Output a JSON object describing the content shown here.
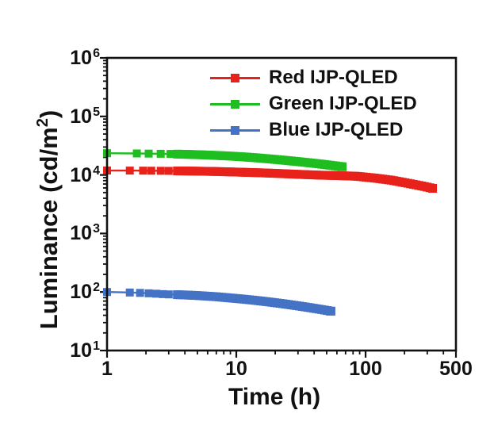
{
  "chart_data": {
    "type": "line",
    "title": "",
    "x_title": "Time (h)",
    "y_title": {
      "pre": "Luminance (cd/m",
      "sup": "2",
      "post": ")"
    },
    "x_scale": "log",
    "y_scale": "log",
    "xlim": [
      1,
      500
    ],
    "ylim": [
      10,
      1000000
    ],
    "x_ticks": {
      "values": [
        1,
        10,
        100,
        500
      ],
      "labels": [
        "1",
        "10",
        "100",
        "500"
      ]
    },
    "y_ticks": {
      "base": "10",
      "exponents": [
        1,
        2,
        3,
        4,
        5,
        6
      ]
    },
    "grid": false,
    "legend_position": "top-right",
    "axis_color": "#111111",
    "series": [
      {
        "name": "Red IJP-QLED",
        "color": "#e8221a",
        "points": [
          [
            1,
            11900
          ],
          [
            1.5,
            11870
          ],
          [
            1.9,
            11840
          ],
          [
            2.2,
            11810
          ],
          [
            2.6,
            11780
          ],
          [
            3,
            11740
          ],
          [
            4,
            11680
          ],
          [
            5,
            11600
          ],
          [
            7,
            11450
          ],
          [
            10,
            11200
          ],
          [
            15,
            10900
          ],
          [
            20,
            10650
          ],
          [
            30,
            10250
          ],
          [
            45,
            9900
          ],
          [
            60,
            9750
          ],
          [
            85,
            9500
          ],
          [
            120,
            8800
          ],
          [
            160,
            8100
          ],
          [
            220,
            7100
          ],
          [
            280,
            6400
          ],
          [
            330,
            5900
          ]
        ]
      },
      {
        "name": "Green IJP-QLED",
        "color": "#1fbe20",
        "points": [
          [
            1,
            23500
          ],
          [
            1.7,
            23300
          ],
          [
            2.1,
            23150
          ],
          [
            2.6,
            23000
          ],
          [
            3.1,
            22850
          ],
          [
            3.5,
            22700
          ],
          [
            4.5,
            22350
          ],
          [
            5.5,
            22050
          ],
          [
            7,
            21550
          ],
          [
            9,
            21000
          ],
          [
            11,
            20450
          ],
          [
            14,
            19700
          ],
          [
            18,
            18800
          ],
          [
            23,
            17900
          ],
          [
            30,
            16900
          ],
          [
            38,
            16000
          ],
          [
            48,
            15100
          ],
          [
            58,
            14300
          ],
          [
            66,
            13800
          ]
        ]
      },
      {
        "name": "Blue IJP-QLED",
        "color": "#4472c4",
        "points": [
          [
            1,
            100
          ],
          [
            1.5,
            98
          ],
          [
            1.8,
            96.5
          ],
          [
            2.1,
            95
          ],
          [
            2.4,
            93.5
          ],
          [
            2.7,
            92
          ],
          [
            3,
            91
          ],
          [
            4,
            89
          ],
          [
            5,
            87
          ],
          [
            7,
            83
          ],
          [
            9,
            79
          ],
          [
            11,
            76
          ],
          [
            14,
            72
          ],
          [
            18,
            67.5
          ],
          [
            23,
            63
          ],
          [
            30,
            58
          ],
          [
            38,
            53.5
          ],
          [
            46,
            50
          ],
          [
            54,
            47
          ]
        ]
      }
    ]
  }
}
